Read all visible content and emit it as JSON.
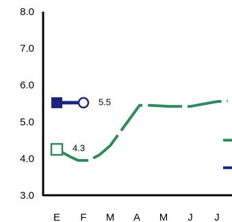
{
  "chart_data": {
    "type": "line",
    "categories": [
      "E",
      "F",
      "M",
      "A",
      "M",
      "J",
      "J"
    ],
    "ylim": [
      3.0,
      8.0
    ],
    "yticks": [
      "3.0",
      "4.0",
      "5.0",
      "6.0",
      "7.0",
      "8.0"
    ],
    "grid": false,
    "legend": "none",
    "series": [
      {
        "color": "#2e8b57",
        "style": "dashed",
        "marker_start": "open-square",
        "points": [
          {
            "x": 0.0,
            "y": 4.25
          },
          {
            "x": 0.25,
            "y": 4.15
          },
          {
            "x": 0.5,
            "y": 4.05
          },
          {
            "x": 0.8,
            "y": 3.95
          },
          {
            "x": 1.2,
            "y": 3.95
          },
          {
            "x": 1.6,
            "y": 4.1
          },
          {
            "x": 2.0,
            "y": 4.35
          },
          {
            "x": 2.4,
            "y": 4.75
          },
          {
            "x": 2.8,
            "y": 5.15
          },
          {
            "x": 3.1,
            "y": 5.45
          },
          {
            "x": 3.5,
            "y": 5.45
          },
          {
            "x": 4.2,
            "y": 5.42
          },
          {
            "x": 5.0,
            "y": 5.42
          },
          {
            "x": 5.6,
            "y": 5.5
          },
          {
            "x": 6.0,
            "y": 5.55
          },
          {
            "x": 6.4,
            "y": 5.57
          }
        ],
        "end_value": 4.5,
        "data_label": "4.3"
      },
      {
        "color": "#1a237e",
        "style": "solid",
        "marker_start": "filled-square",
        "marker_end": "open-circle",
        "points": [
          {
            "x": 0.0,
            "y": 5.52
          },
          {
            "x": 1.0,
            "y": 5.52
          }
        ],
        "end_value": 3.75,
        "data_label": "5.5"
      }
    ]
  }
}
